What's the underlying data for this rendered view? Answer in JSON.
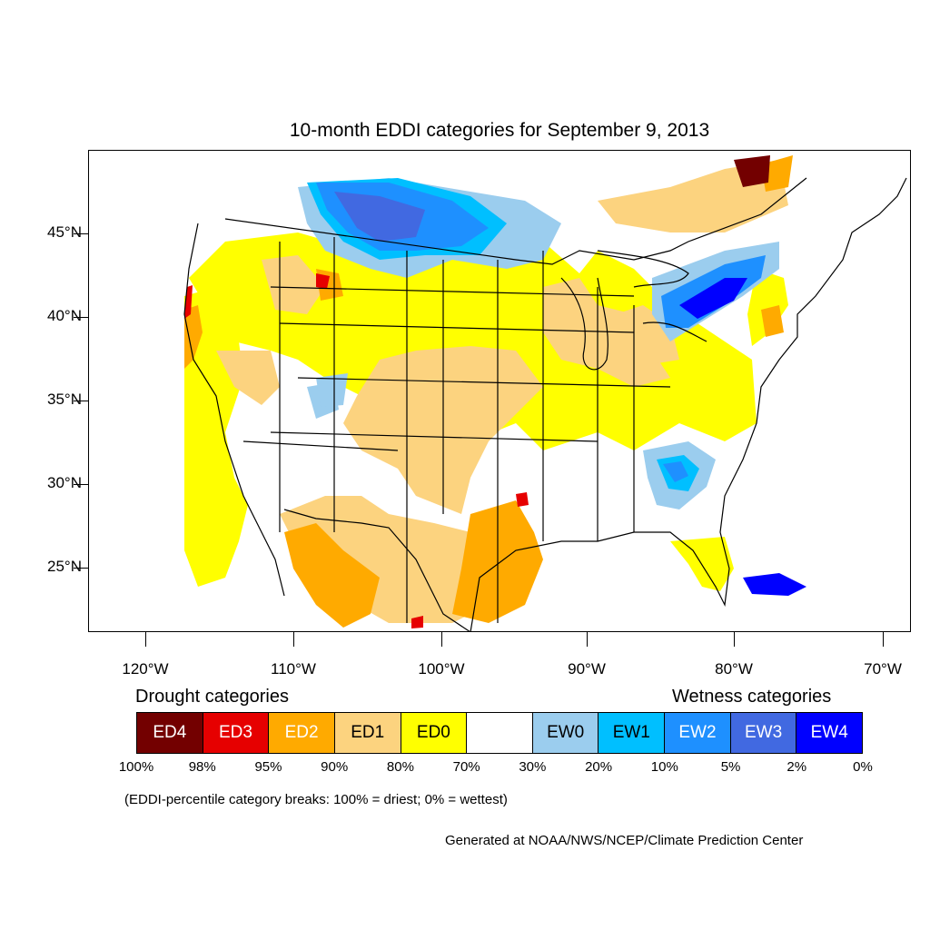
{
  "title": "10-month EDDI categories for September 9, 2013",
  "lat_labels": [
    "45°N",
    "40°N",
    "35°N",
    "30°N",
    "25°N"
  ],
  "lon_labels": [
    "120°W",
    "110°W",
    "100°W",
    "90°W",
    "80°W",
    "70°W"
  ],
  "legend": {
    "drought_heading": "Drought categories",
    "wetness_heading": "Wetness categories",
    "categories": [
      {
        "label": "ED4",
        "color": "#730000",
        "text_color": "#ffffff"
      },
      {
        "label": "ED3",
        "color": "#e60000",
        "text_color": "#ffffff"
      },
      {
        "label": "ED2",
        "color": "#ffaa00",
        "text_color": "#ffffff"
      },
      {
        "label": "ED1",
        "color": "#fcd37f",
        "text_color": "#000000"
      },
      {
        "label": "ED0",
        "color": "#ffff00",
        "text_color": "#000000"
      },
      {
        "label": "",
        "color": "#ffffff",
        "text_color": "#000000"
      },
      {
        "label": "EW0",
        "color": "#9bcdee",
        "text_color": "#000000"
      },
      {
        "label": "EW1",
        "color": "#00bfff",
        "text_color": "#000000"
      },
      {
        "label": "EW2",
        "color": "#1e90ff",
        "text_color": "#ffffff"
      },
      {
        "label": "EW3",
        "color": "#4169e1",
        "text_color": "#ffffff"
      },
      {
        "label": "EW4",
        "color": "#0000ff",
        "text_color": "#ffffff"
      }
    ],
    "percentiles": [
      "100%",
      "98%",
      "95%",
      "90%",
      "80%",
      "70%",
      "30%",
      "20%",
      "10%",
      "5%",
      "2%",
      "0%"
    ]
  },
  "note": "(EDDI-percentile category breaks: 100% = driest; 0% = wettest)",
  "credit": "Generated at NOAA/NWS/NCEP/Climate Prediction Center"
}
